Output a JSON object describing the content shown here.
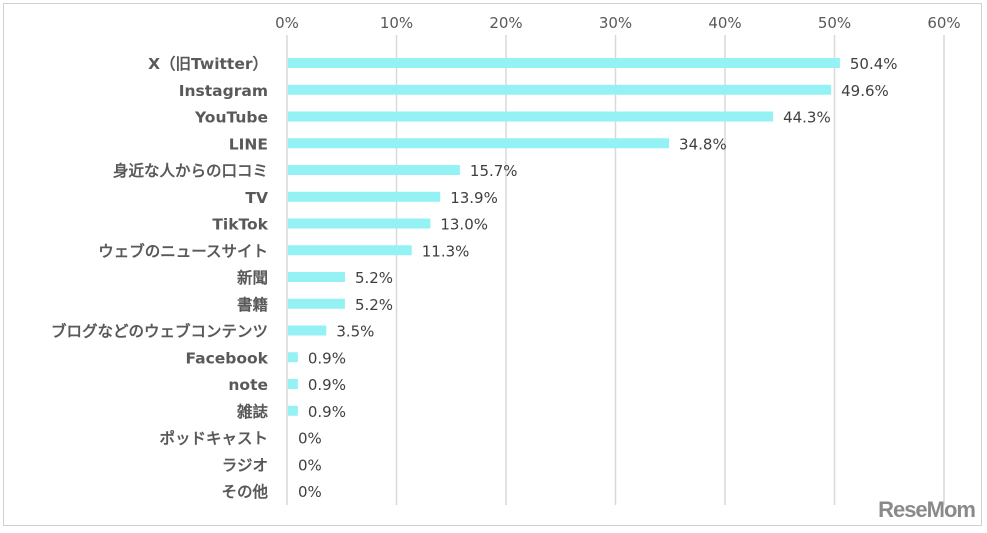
{
  "chart_data": {
    "type": "bar",
    "orientation": "horizontal",
    "categories": [
      "X（旧Twitter）",
      "Instagram",
      "YouTube",
      "LINE",
      "身近な人からの口コミ",
      "TV",
      "TikTok",
      "ウェブのニュースサイト",
      "新聞",
      "書籍",
      "ブログなどのウェブコンテンツ",
      "Facebook",
      "note",
      "雑誌",
      "ポッドキャスト",
      "ラジオ",
      "その他"
    ],
    "values": [
      50.4,
      49.6,
      44.3,
      34.8,
      15.7,
      13.9,
      13.0,
      11.3,
      5.2,
      5.2,
      3.5,
      0.9,
      0.9,
      0.9,
      0,
      0,
      0
    ],
    "data_labels": [
      "50.4%",
      "49.6%",
      "44.3%",
      "34.8%",
      "15.7%",
      "13.9%",
      "13.0%",
      "11.3%",
      "5.2%",
      "5.2%",
      "3.5%",
      "0.9%",
      "0.9%",
      "0.9%",
      "0%",
      "0%",
      "0%"
    ],
    "xlim": [
      0,
      60
    ],
    "x_ticks": [
      "0%",
      "10%",
      "20%",
      "30%",
      "40%",
      "50%",
      "60%"
    ],
    "x_axis_position": "top",
    "grid": true,
    "bar_color": "#94f2f5"
  },
  "logo": "ReseMom"
}
